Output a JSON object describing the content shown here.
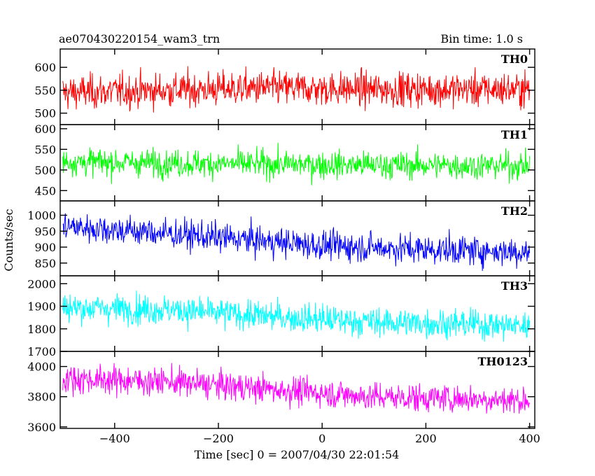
{
  "title_left": "ae070430220154_wam3_trn",
  "title_right": "Bin time: 1.0 s",
  "ylabel": "Counts/sec",
  "xlabel": "Time [sec] 0 = 2007/04/30 22:01:54",
  "chart_data": {
    "type": "line",
    "x_range": [
      -500,
      400
    ],
    "bin_time_s": 1.0,
    "xlim": [
      -505,
      410
    ],
    "x_ticks": [
      -400,
      -200,
      0,
      200,
      400
    ],
    "x_tick_labels": [
      "−400",
      "−200",
      "0",
      "200",
      "400"
    ],
    "grid": false,
    "panels": [
      {
        "name": "TH0",
        "color": "#ff0000",
        "ylim": [
          475,
          640
        ],
        "y_ticks": [
          500,
          550,
          600
        ],
        "y_tick_labels": [
          "500",
          "550",
          "600"
        ],
        "trend": [
          [
            -500,
            545
          ],
          [
            -300,
            550
          ],
          [
            -100,
            555
          ],
          [
            100,
            552
          ],
          [
            400,
            552
          ]
        ],
        "noise": 26
      },
      {
        "name": "TH1",
        "color": "#00ff00",
        "ylim": [
          425,
          610
        ],
        "y_ticks": [
          450,
          500,
          550,
          600
        ],
        "y_tick_labels": [
          "450",
          "500",
          "550",
          "600"
        ],
        "trend": [
          [
            -500,
            520
          ],
          [
            -200,
            515
          ],
          [
            100,
            512
          ],
          [
            400,
            510
          ]
        ],
        "noise": 23
      },
      {
        "name": "TH2",
        "color": "#0000ff",
        "ylim": [
          810,
          1045
        ],
        "y_ticks": [
          850,
          900,
          950,
          1000
        ],
        "y_tick_labels": [
          "850",
          "900",
          "950",
          "1000"
        ],
        "trend": [
          [
            -500,
            965
          ],
          [
            -400,
            955
          ],
          [
            -200,
            930
          ],
          [
            0,
            905
          ],
          [
            200,
            893
          ],
          [
            400,
            885
          ]
        ],
        "noise": 32
      },
      {
        "name": "TH3",
        "color": "#00ffff",
        "ylim": [
          1700,
          2035
        ],
        "y_ticks": [
          1700,
          1800,
          1900,
          2000
        ],
        "y_tick_labels": [
          "1700",
          "1800",
          "1900",
          "2000"
        ],
        "trend": [
          [
            -500,
            1895
          ],
          [
            -300,
            1885
          ],
          [
            -100,
            1855
          ],
          [
            100,
            1830
          ],
          [
            300,
            1820
          ],
          [
            400,
            1812
          ]
        ],
        "noise": 45
      },
      {
        "name": "TH0123",
        "color": "#ff00ff",
        "ylim": [
          3590,
          4100
        ],
        "y_ticks": [
          3600,
          3800,
          4000
        ],
        "y_tick_labels": [
          "3600",
          "3800",
          "4000"
        ],
        "trend": [
          [
            -500,
            3920
          ],
          [
            -300,
            3900
          ],
          [
            -100,
            3850
          ],
          [
            100,
            3800
          ],
          [
            300,
            3785
          ],
          [
            400,
            3775
          ]
        ],
        "noise": 65
      }
    ]
  }
}
